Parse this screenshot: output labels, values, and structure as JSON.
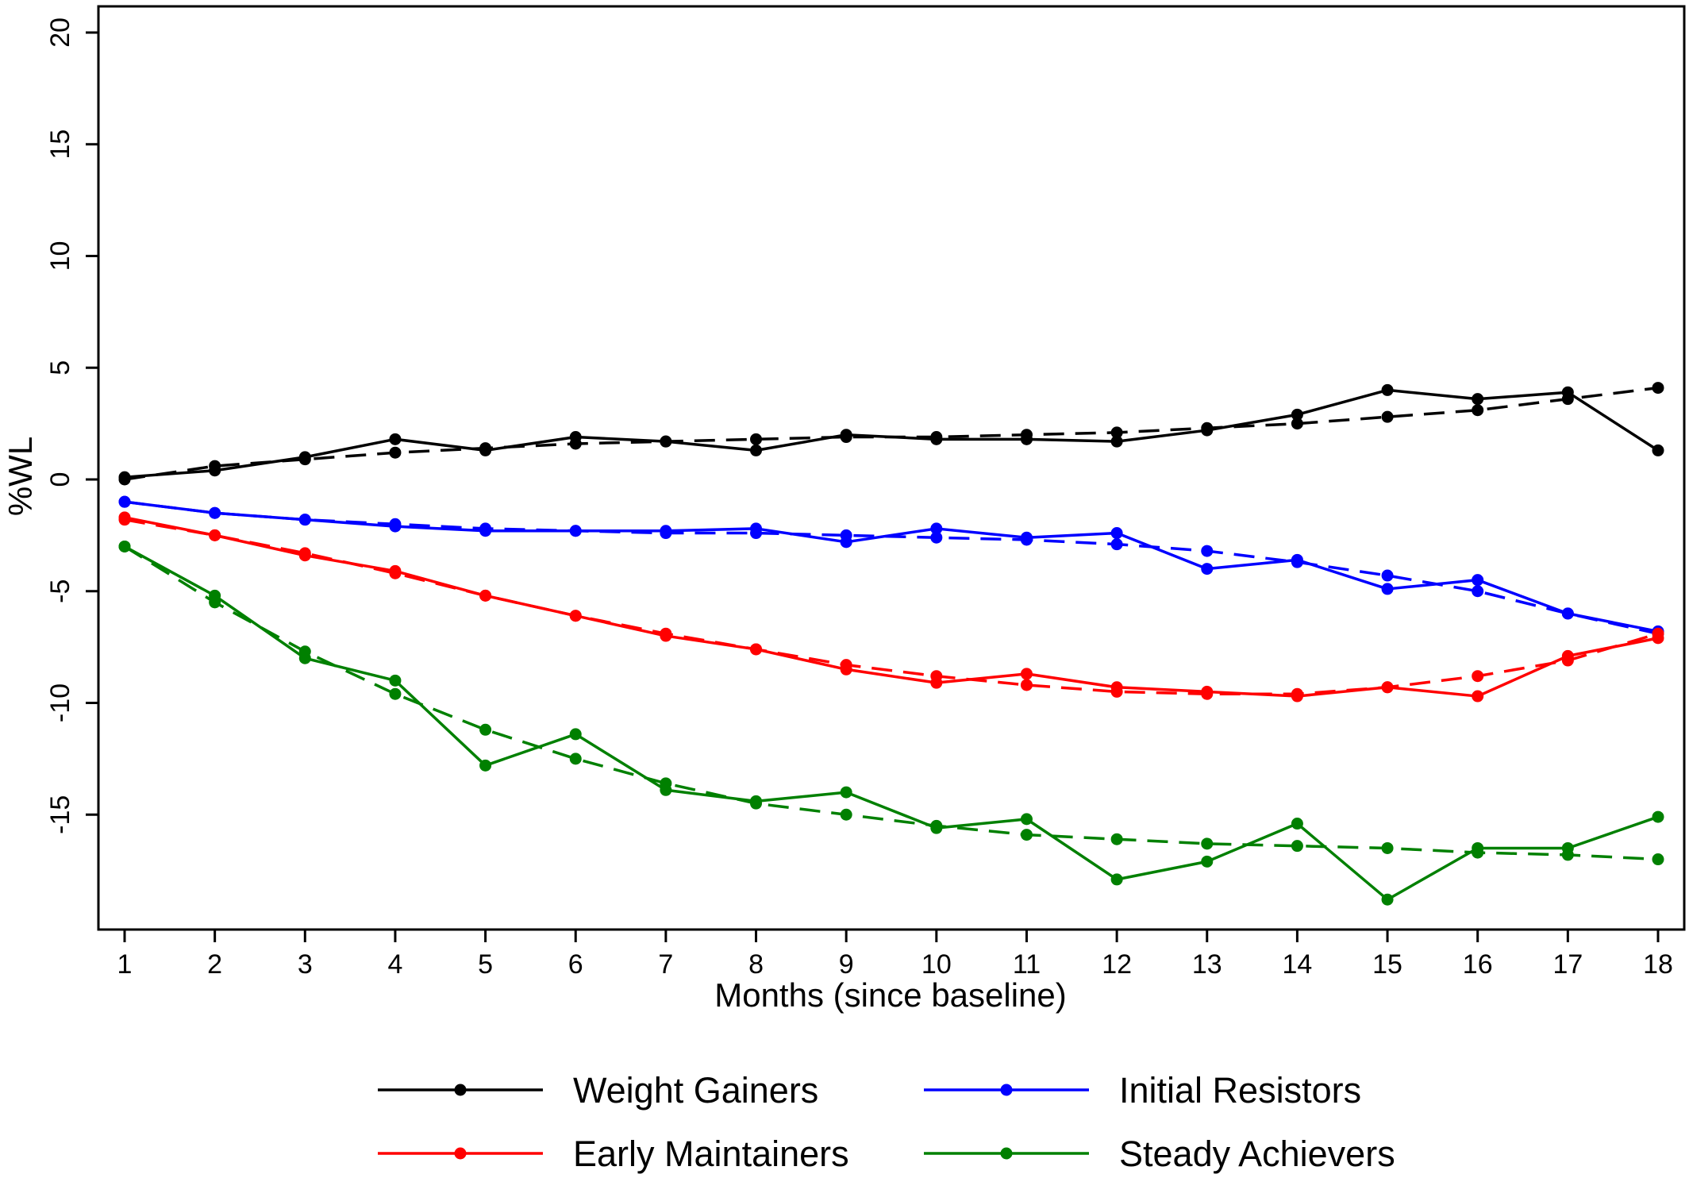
{
  "chart_data": {
    "type": "line",
    "title": "",
    "xlabel": "Months (since baseline)",
    "ylabel": "%WL",
    "xlim": [
      1,
      18
    ],
    "ylim": [
      -20,
      20
    ],
    "x": [
      1,
      2,
      3,
      4,
      5,
      6,
      7,
      8,
      9,
      10,
      11,
      12,
      13,
      14,
      15,
      16,
      17,
      18
    ],
    "x_ticks": [
      "1",
      "2",
      "3",
      "4",
      "5",
      "6",
      "7",
      "8",
      "9",
      "10",
      "11",
      "12",
      "13",
      "14",
      "15",
      "16",
      "17",
      "18"
    ],
    "y_ticks": [
      -15,
      -10,
      -5,
      0,
      5,
      10,
      15,
      20
    ],
    "y_tick_labels": [
      "-15",
      "-10",
      "-5",
      "0",
      "5",
      "10",
      "15",
      "20"
    ],
    "grid": false,
    "legend_position": "bottom",
    "series": [
      {
        "name": "Weight Gainers",
        "color": "#000000",
        "observed": [
          0.1,
          0.4,
          1.0,
          1.8,
          1.3,
          1.9,
          1.7,
          1.3,
          2.0,
          1.8,
          1.8,
          1.7,
          2.2,
          2.9,
          4.0,
          3.6,
          3.9,
          1.3
        ],
        "fitted": [
          0.0,
          0.6,
          0.9,
          1.2,
          1.4,
          1.6,
          1.7,
          1.8,
          1.9,
          1.9,
          2.0,
          2.1,
          2.3,
          2.5,
          2.8,
          3.1,
          3.6,
          4.1
        ]
      },
      {
        "name": "Initial Resistors",
        "color": "#0000ff",
        "observed": [
          -1.0,
          -1.5,
          -1.8,
          -2.1,
          -2.3,
          -2.3,
          -2.3,
          -2.2,
          -2.8,
          -2.2,
          -2.6,
          -2.4,
          -4.0,
          -3.6,
          -4.9,
          -4.5,
          -6.0,
          -6.8
        ],
        "fitted": [
          -1.0,
          -1.5,
          -1.8,
          -2.0,
          -2.2,
          -2.3,
          -2.4,
          -2.4,
          -2.5,
          -2.6,
          -2.7,
          -2.9,
          -3.2,
          -3.7,
          -4.3,
          -5.0,
          -6.0,
          -6.9
        ]
      },
      {
        "name": "Early Maintainers",
        "color": "#ff0000",
        "observed": [
          -1.7,
          -2.5,
          -3.4,
          -4.1,
          -5.2,
          -6.1,
          -7.0,
          -7.6,
          -8.5,
          -9.1,
          -8.7,
          -9.3,
          -9.5,
          -9.7,
          -9.3,
          -9.7,
          -7.9,
          -7.1
        ],
        "fitted": [
          -1.8,
          -2.5,
          -3.3,
          -4.2,
          -5.2,
          -6.1,
          -6.9,
          -7.6,
          -8.3,
          -8.8,
          -9.2,
          -9.5,
          -9.6,
          -9.6,
          -9.3,
          -8.8,
          -8.1,
          -6.9
        ]
      },
      {
        "name": "Steady Achievers",
        "color": "#008000",
        "observed": [
          -3.0,
          -5.2,
          -8.0,
          -9.0,
          -12.8,
          -11.4,
          -13.9,
          -14.4,
          -14.0,
          -15.6,
          -15.2,
          -17.9,
          -17.1,
          -15.4,
          -18.8,
          -16.5,
          -16.5,
          -15.1
        ],
        "fitted": [
          -3.0,
          -5.5,
          -7.7,
          -9.6,
          -11.2,
          -12.5,
          -13.6,
          -14.5,
          -15.0,
          -15.5,
          -15.9,
          -16.1,
          -16.3,
          -16.4,
          -16.5,
          -16.7,
          -16.8,
          -17.0
        ]
      }
    ]
  }
}
